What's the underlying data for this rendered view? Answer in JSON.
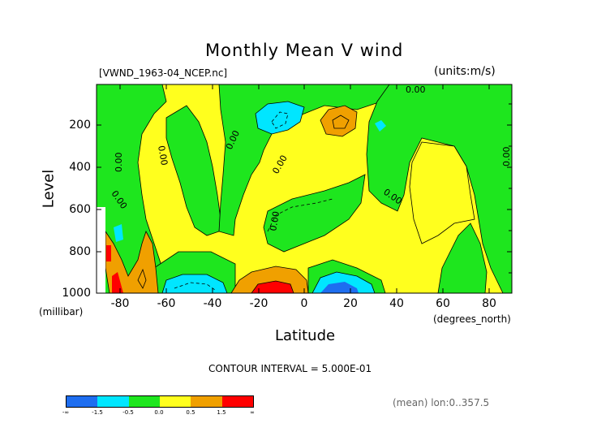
{
  "chart_data": {
    "type": "heatmap",
    "title": "Monthly Mean V wind",
    "file_label": "[VWND_1963-04_NCEP.nc]",
    "units_label": "(units:m/s)",
    "xlabel": "Latitude",
    "x_units": "(degrees_north)",
    "ylabel": "Level",
    "y_units": "(millibar)",
    "x_range": [
      -90,
      90
    ],
    "y_range": [
      1000,
      10
    ],
    "x_ticks": [
      "-80",
      "-60",
      "-40",
      "-20",
      "0",
      "20",
      "40",
      "60",
      "80"
    ],
    "y_ticks": [
      "200",
      "400",
      "600",
      "800",
      "1000"
    ],
    "contour_interval_text": "CONTOUR INTERVAL = 5.000E-01",
    "contour_labels": [
      "0.00",
      "0.00",
      "0.00",
      "0.00",
      "0.00",
      "0.00",
      "0.00",
      "0.00",
      "0.00"
    ],
    "colorbar": {
      "bins": [
        {
          "color": "#1e6ef0",
          "range": [
            "-∞",
            "-1.5"
          ]
        },
        {
          "color": "#00e6ff",
          "range": [
            "-1.5",
            "-0.5"
          ]
        },
        {
          "color": "#1ee61e",
          "range": [
            "-0.5",
            "0.0"
          ]
        },
        {
          "color": "#ffff1e",
          "range": [
            "0.0",
            "0.5"
          ]
        },
        {
          "color": "#f0a000",
          "range": [
            "0.5",
            "1.5"
          ]
        },
        {
          "color": "#ff0000",
          "range": [
            "1.5",
            "∞"
          ]
        }
      ],
      "tick_labels": [
        "-∞",
        "-1.5",
        "-0.5",
        "0.0",
        "0.5",
        "1.5",
        "∞"
      ]
    },
    "footer_note": "(mean) lon:0..357.5"
  }
}
